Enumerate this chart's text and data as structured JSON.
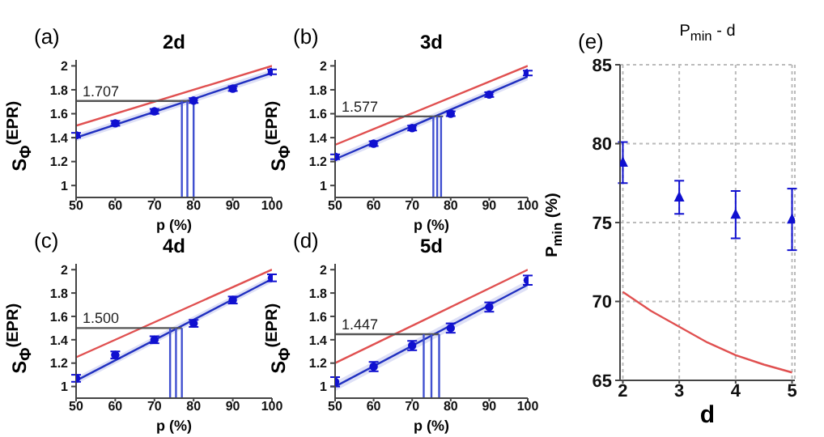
{
  "chart_data": [
    {
      "type": "line",
      "title": "2d",
      "xlabel": "p (%)",
      "ylabel": "S$_{Φ}$$^{(EPR)}$",
      "xlim": [
        50,
        100
      ],
      "ylim": [
        0.9,
        2.05
      ],
      "xticks": [
        50,
        60,
        70,
        80,
        90,
        100
      ],
      "yticks": [
        1,
        1.2,
        1.4,
        1.6,
        1.8,
        2
      ],
      "annotations": [
        "(a)"
      ],
      "series": [
        {
          "type": "line",
          "color": "#e05050",
          "x": [
            50,
            100
          ],
          "values": [
            1.5,
            2.0
          ]
        },
        {
          "type": "line",
          "color": "#2030c0",
          "x": [
            50,
            100
          ],
          "values": [
            1.4,
            1.94
          ],
          "lower": [
            1.37,
            1.91
          ],
          "upper": [
            1.43,
            1.97
          ]
        },
        {
          "type": "scatter",
          "marker": "circle",
          "color": "#1010d0",
          "x": [
            50,
            60,
            70,
            80,
            90,
            100
          ],
          "values": [
            1.42,
            1.52,
            1.62,
            1.71,
            1.81,
            1.95
          ],
          "errors": [
            0.02,
            0.02,
            0.02,
            0.02,
            0.02,
            0.02
          ]
        },
        {
          "type": "line",
          "color": "#555555",
          "x": [
            50,
            80
          ],
          "values": [
            1.707,
            1.707
          ],
          "value_labels": [
            "1.707",
            null
          ]
        },
        {
          "type": "line",
          "color": "#4050d0",
          "x": [
            77,
            77
          ],
          "values": [
            0.9,
            1.707
          ]
        },
        {
          "type": "line",
          "color": "#4050d0",
          "x": [
            78.4,
            78.4
          ],
          "values": [
            0.9,
            1.707
          ]
        },
        {
          "type": "line",
          "color": "#4050d0",
          "x": [
            80,
            80
          ],
          "values": [
            0.9,
            1.707
          ]
        }
      ]
    },
    {
      "type": "line",
      "title": "3d",
      "xlabel": "p (%)",
      "ylabel": "S$_{Φ}$$^{(EPR)}$",
      "xlim": [
        50,
        100
      ],
      "ylim": [
        0.9,
        2.05
      ],
      "xticks": [
        50,
        60,
        70,
        80,
        90,
        100
      ],
      "yticks": [
        1,
        1.2,
        1.4,
        1.6,
        1.8,
        2
      ],
      "annotations": [
        "(b)"
      ],
      "series": [
        {
          "type": "line",
          "color": "#e05050",
          "x": [
            50,
            100
          ],
          "values": [
            1.34,
            2.0
          ]
        },
        {
          "type": "line",
          "color": "#2030c0",
          "x": [
            50,
            100
          ],
          "values": [
            1.22,
            1.91
          ],
          "lower": [
            1.19,
            1.88
          ],
          "upper": [
            1.25,
            1.94
          ]
        },
        {
          "type": "scatter",
          "marker": "circle",
          "color": "#1010d0",
          "x": [
            50,
            60,
            70,
            80,
            90,
            100
          ],
          "values": [
            1.24,
            1.35,
            1.48,
            1.6,
            1.76,
            1.94
          ],
          "errors": [
            0.02,
            0.02,
            0.02,
            0.02,
            0.02,
            0.02
          ]
        },
        {
          "type": "line",
          "color": "#555555",
          "x": [
            50,
            78
          ],
          "values": [
            1.577,
            1.577
          ],
          "value_labels": [
            "1.577",
            null
          ]
        },
        {
          "type": "line",
          "color": "#4050d0",
          "x": [
            75.5,
            75.5
          ],
          "values": [
            0.9,
            1.577
          ]
        },
        {
          "type": "line",
          "color": "#4050d0",
          "x": [
            76.5,
            76.5
          ],
          "values": [
            0.9,
            1.577
          ]
        },
        {
          "type": "line",
          "color": "#4050d0",
          "x": [
            77.5,
            77.5
          ],
          "values": [
            0.9,
            1.577
          ]
        }
      ]
    },
    {
      "type": "line",
      "title": "4d",
      "xlabel": "p (%)",
      "ylabel": "S$_{Φ}$$^{(EPR)}$",
      "xlim": [
        50,
        100
      ],
      "ylim": [
        0.9,
        2.05
      ],
      "xticks": [
        50,
        60,
        70,
        80,
        90,
        100
      ],
      "yticks": [
        1,
        1.2,
        1.4,
        1.6,
        1.8,
        2
      ],
      "annotations": [
        "(c)"
      ],
      "series": [
        {
          "type": "line",
          "color": "#e05050",
          "x": [
            50,
            100
          ],
          "values": [
            1.25,
            2.0
          ]
        },
        {
          "type": "line",
          "color": "#2030c0",
          "x": [
            50,
            100
          ],
          "values": [
            1.05,
            1.92
          ],
          "lower": [
            1.02,
            1.89
          ],
          "upper": [
            1.08,
            1.95
          ]
        },
        {
          "type": "scatter",
          "marker": "circle",
          "color": "#1010d0",
          "x": [
            50,
            60,
            70,
            80,
            90,
            100
          ],
          "values": [
            1.07,
            1.27,
            1.4,
            1.54,
            1.74,
            1.93
          ],
          "errors": [
            0.03,
            0.03,
            0.03,
            0.03,
            0.03,
            0.03
          ]
        },
        {
          "type": "line",
          "color": "#555555",
          "x": [
            50,
            77
          ],
          "values": [
            1.5,
            1.5
          ],
          "value_labels": [
            "1.500",
            null
          ]
        },
        {
          "type": "line",
          "color": "#4050d0",
          "x": [
            74,
            74
          ],
          "values": [
            0.9,
            1.5
          ]
        },
        {
          "type": "line",
          "color": "#4050d0",
          "x": [
            75.5,
            75.5
          ],
          "values": [
            0.9,
            1.5
          ]
        },
        {
          "type": "line",
          "color": "#4050d0",
          "x": [
            77,
            77
          ],
          "values": [
            0.9,
            1.5
          ]
        }
      ]
    },
    {
      "type": "line",
      "title": "5d",
      "xlabel": "p (%)",
      "ylabel": "S$_{Φ}$$^{(EPR)}$",
      "xlim": [
        50,
        100
      ],
      "ylim": [
        0.9,
        2.05
      ],
      "xticks": [
        50,
        60,
        70,
        80,
        90,
        100
      ],
      "yticks": [
        1,
        1.2,
        1.4,
        1.6,
        1.8,
        2
      ],
      "annotations": [
        "(d)"
      ],
      "series": [
        {
          "type": "line",
          "color": "#e05050",
          "x": [
            50,
            100
          ],
          "values": [
            1.2,
            2.0
          ]
        },
        {
          "type": "line",
          "color": "#2030c0",
          "x": [
            50,
            100
          ],
          "values": [
            1.0,
            1.87
          ],
          "lower": [
            0.96,
            1.83
          ],
          "upper": [
            1.04,
            1.91
          ]
        },
        {
          "type": "scatter",
          "marker": "circle",
          "color": "#1010d0",
          "x": [
            50,
            60,
            70,
            80,
            90,
            100
          ],
          "values": [
            1.04,
            1.17,
            1.35,
            1.5,
            1.68,
            1.91
          ],
          "errors": [
            0.04,
            0.04,
            0.04,
            0.04,
            0.04,
            0.04
          ]
        },
        {
          "type": "line",
          "color": "#555555",
          "x": [
            50,
            77
          ],
          "values": [
            1.447,
            1.447
          ],
          "value_labels": [
            "1.447",
            null
          ]
        },
        {
          "type": "line",
          "color": "#4050d0",
          "x": [
            73,
            73
          ],
          "values": [
            0.9,
            1.447
          ]
        },
        {
          "type": "line",
          "color": "#4050d0",
          "x": [
            75,
            75
          ],
          "values": [
            0.9,
            1.447
          ]
        },
        {
          "type": "line",
          "color": "#4050d0",
          "x": [
            77,
            77
          ],
          "values": [
            0.9,
            1.447
          ]
        }
      ]
    },
    {
      "type": "line",
      "title": "P$_{min}$ - d",
      "xlabel": "d",
      "ylabel": "P$_{min}$ (%)",
      "xlim": [
        1.95,
        5.05
      ],
      "ylim": [
        65,
        85
      ],
      "xticks": [
        2,
        3,
        4,
        5
      ],
      "yticks": [
        65,
        70,
        75,
        80,
        85
      ],
      "grid": true,
      "annotations": [
        "(e)"
      ],
      "series": [
        {
          "type": "line",
          "color": "#e05050",
          "x": [
            2,
            2.5,
            3,
            3.5,
            4,
            4.5,
            5
          ],
          "values": [
            70.6,
            69.4,
            68.4,
            67.4,
            66.6,
            66.0,
            65.5
          ]
        },
        {
          "type": "scatter",
          "marker": "triangle",
          "color": "#1010d0",
          "x": [
            2,
            3,
            4,
            5
          ],
          "values": [
            78.8,
            76.6,
            75.5,
            75.2
          ],
          "errors": [
            1.3,
            1.05,
            1.5,
            1.95
          ]
        }
      ]
    }
  ]
}
